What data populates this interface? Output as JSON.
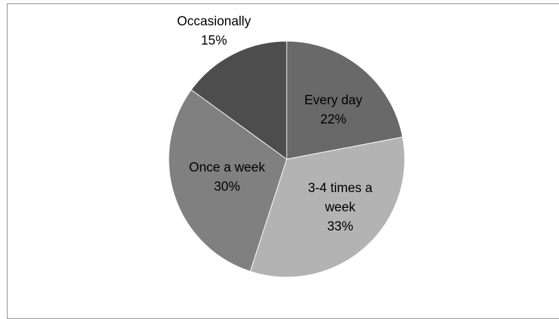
{
  "chart_data": {
    "type": "pie",
    "slices": [
      {
        "label": "Every day",
        "label_lines": [
          "Every day"
        ],
        "value": 22,
        "value_label": "22%",
        "color": "#696969"
      },
      {
        "label": "3-4 times a week",
        "label_lines": [
          "3-4 times a",
          "week"
        ],
        "value": 33,
        "value_label": "33%",
        "color": "#b3b3b3"
      },
      {
        "label": "Once a week",
        "label_lines": [
          "Once a week"
        ],
        "value": 30,
        "value_label": "30%",
        "color": "#808080"
      },
      {
        "label": "Occasionally",
        "label_lines": [
          "Occasionally"
        ],
        "value": 15,
        "value_label": "15%",
        "color": "#4d4d4d"
      }
    ],
    "start_angle_deg": 0,
    "direction": "clockwise",
    "legend": "none"
  }
}
